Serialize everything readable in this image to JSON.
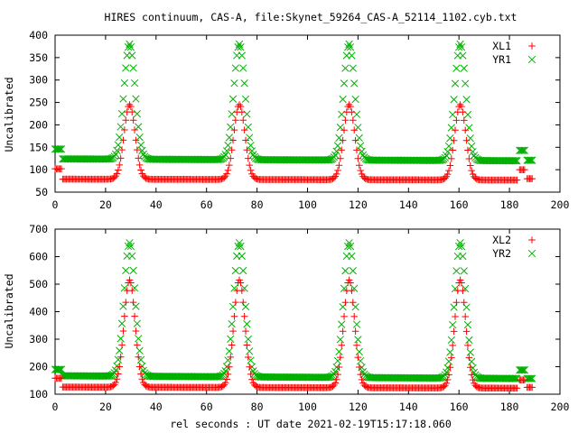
{
  "title": "HIRES continuum, CAS-A, file:Skynet_59264_CAS-A_52114_1102.cyb.txt",
  "xlabel": "rel seconds : UT date 2021-02-19T15:17:18.060",
  "colors": {
    "red": "#ff0000",
    "green": "#00b000"
  },
  "chart_data": [
    {
      "type": "scatter",
      "ylabel": "Uncalibrated",
      "xlim": [
        0,
        200
      ],
      "ylim": [
        50,
        400
      ],
      "xticks": [
        0,
        20,
        40,
        60,
        80,
        100,
        120,
        140,
        160,
        180,
        200
      ],
      "yticks": [
        50,
        100,
        150,
        200,
        250,
        300,
        350,
        400
      ],
      "legend": "top-right",
      "peak_centers": [
        29.5,
        73,
        116.5,
        160.5
      ],
      "peak_width": 2.2,
      "series": [
        {
          "name": "XL1",
          "marker": "plus",
          "color": "red",
          "pre": {
            "x": [
              0,
              2.5
            ],
            "y": 102
          },
          "baseline_start": 79,
          "baseline_end": 77,
          "peak": 245,
          "post": {
            "x": [
              184,
              186
            ],
            "y": 100
          },
          "end": {
            "x": [
              187,
              189
            ],
            "y": 80
          }
        },
        {
          "name": "YR1",
          "marker": "cross",
          "color": "green",
          "pre": {
            "x": [
              0,
              2.5
            ],
            "y": 146
          },
          "baseline_start": 124,
          "baseline_end": 120,
          "peak": 380,
          "post": {
            "x": [
              184,
              186
            ],
            "y": 143
          },
          "end": {
            "x": [
              187,
              189
            ],
            "y": 121
          }
        }
      ]
    },
    {
      "type": "scatter",
      "ylabel": "Uncalibrated",
      "xlim": [
        0,
        200
      ],
      "ylim": [
        100,
        700
      ],
      "xticks": [
        0,
        20,
        40,
        60,
        80,
        100,
        120,
        140,
        160,
        180,
        200
      ],
      "yticks": [
        100,
        200,
        300,
        400,
        500,
        600,
        700
      ],
      "legend": "top-right",
      "peak_centers": [
        29.5,
        73,
        116.5,
        160.5
      ],
      "peak_width": 2.2,
      "series": [
        {
          "name": "XL2",
          "marker": "plus",
          "color": "red",
          "pre": {
            "x": [
              0,
              2.5
            ],
            "y": 158
          },
          "baseline_start": 126,
          "baseline_end": 122,
          "peak": 515,
          "post": {
            "x": [
              184,
              186
            ],
            "y": 152
          },
          "end": {
            "x": [
              187,
              189
            ],
            "y": 125
          }
        },
        {
          "name": "YR2",
          "marker": "cross",
          "color": "green",
          "pre": {
            "x": [
              0,
              2.5
            ],
            "y": 190
          },
          "baseline_start": 167,
          "baseline_end": 157,
          "peak": 650,
          "post": {
            "x": [
              184,
              186
            ],
            "y": 188
          },
          "end": {
            "x": [
              187,
              189
            ],
            "y": 157
          }
        }
      ]
    }
  ]
}
